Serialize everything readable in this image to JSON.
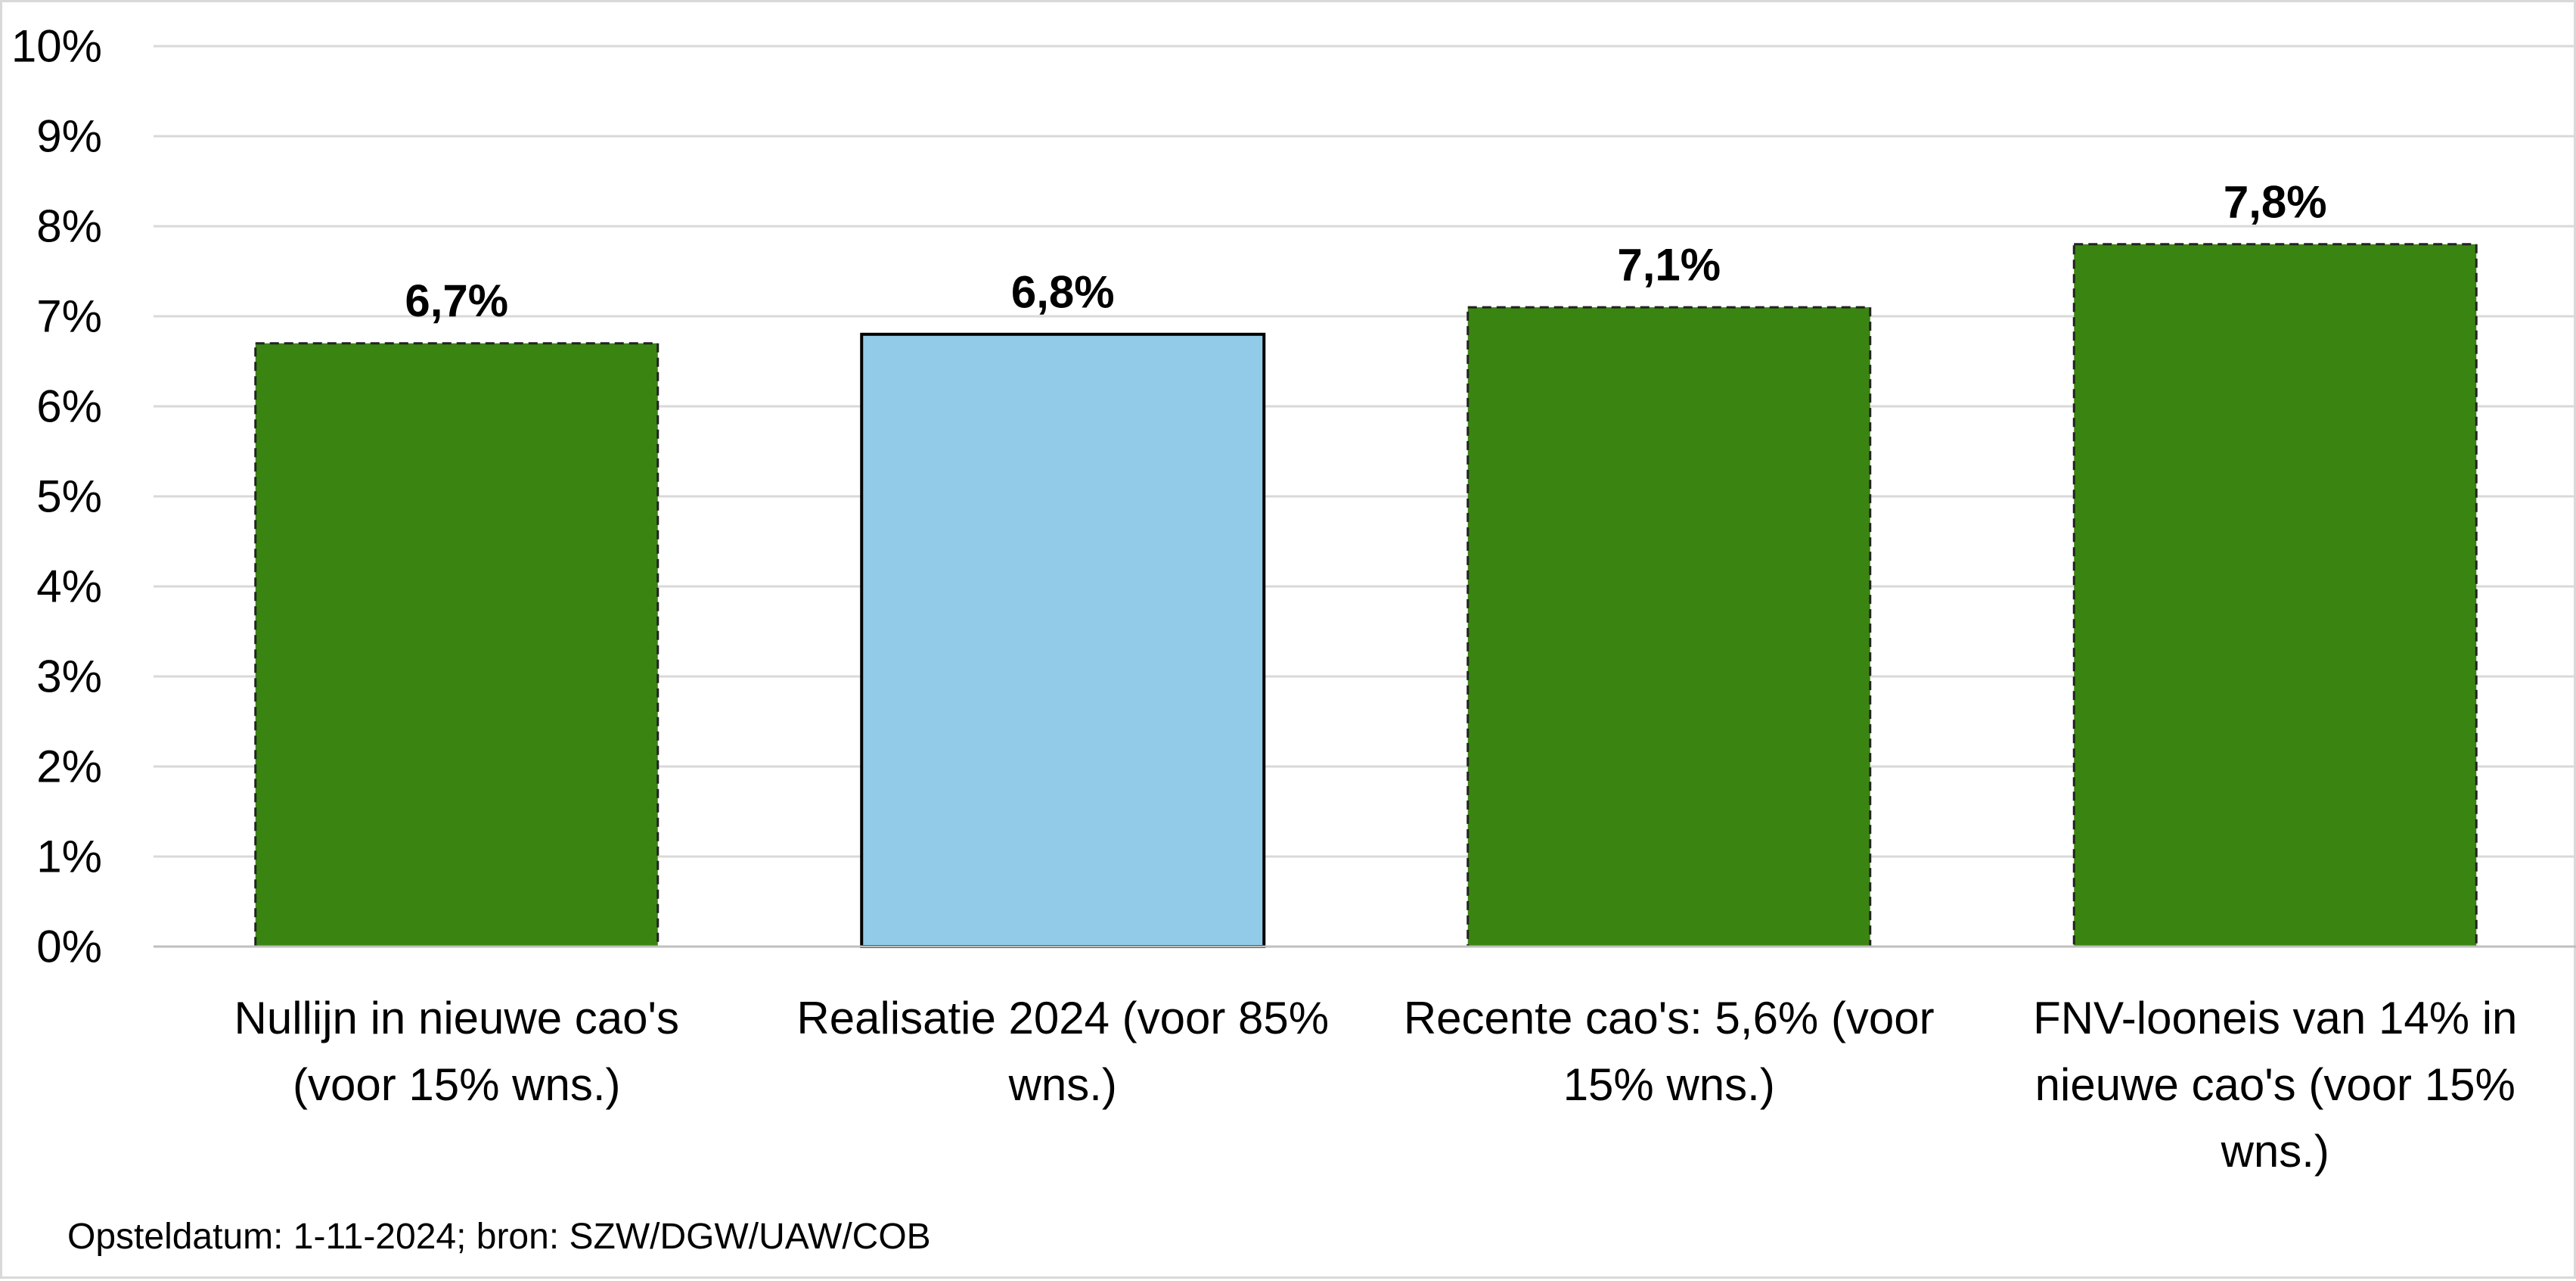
{
  "chart_data": {
    "type": "bar",
    "categories": [
      [
        "Nullijn in nieuwe cao's",
        "(voor 15% wns.)"
      ],
      [
        "Realisatie 2024 (voor 85%",
        "wns.)"
      ],
      [
        "Recente cao's: 5,6% (voor",
        "15% wns.)"
      ],
      [
        "FNV-looneis van 14% in",
        "nieuwe cao's (voor 15%",
        "wns.)"
      ]
    ],
    "values": [
      6.7,
      6.8,
      7.1,
      7.8
    ],
    "value_labels": [
      "6,7%",
      "6,8%",
      "7,1%",
      "7,8%"
    ],
    "bar_colors": [
      "#3a8511",
      "#92cbe8",
      "#3a8511",
      "#3a8511"
    ],
    "bar_borders": [
      "dashed",
      "solid",
      "dashed",
      "dashed"
    ],
    "ylim": [
      0,
      10
    ],
    "yticks": [
      "0%",
      "1%",
      "2%",
      "3%",
      "4%",
      "5%",
      "6%",
      "7%",
      "8%",
      "9%",
      "10%"
    ],
    "grid": true,
    "legend": "none",
    "title": "",
    "xlabel": "",
    "ylabel": ""
  },
  "footnote": "Opsteldatum: 1-11-2024; bron: SZW/DGW/UAW/COB"
}
